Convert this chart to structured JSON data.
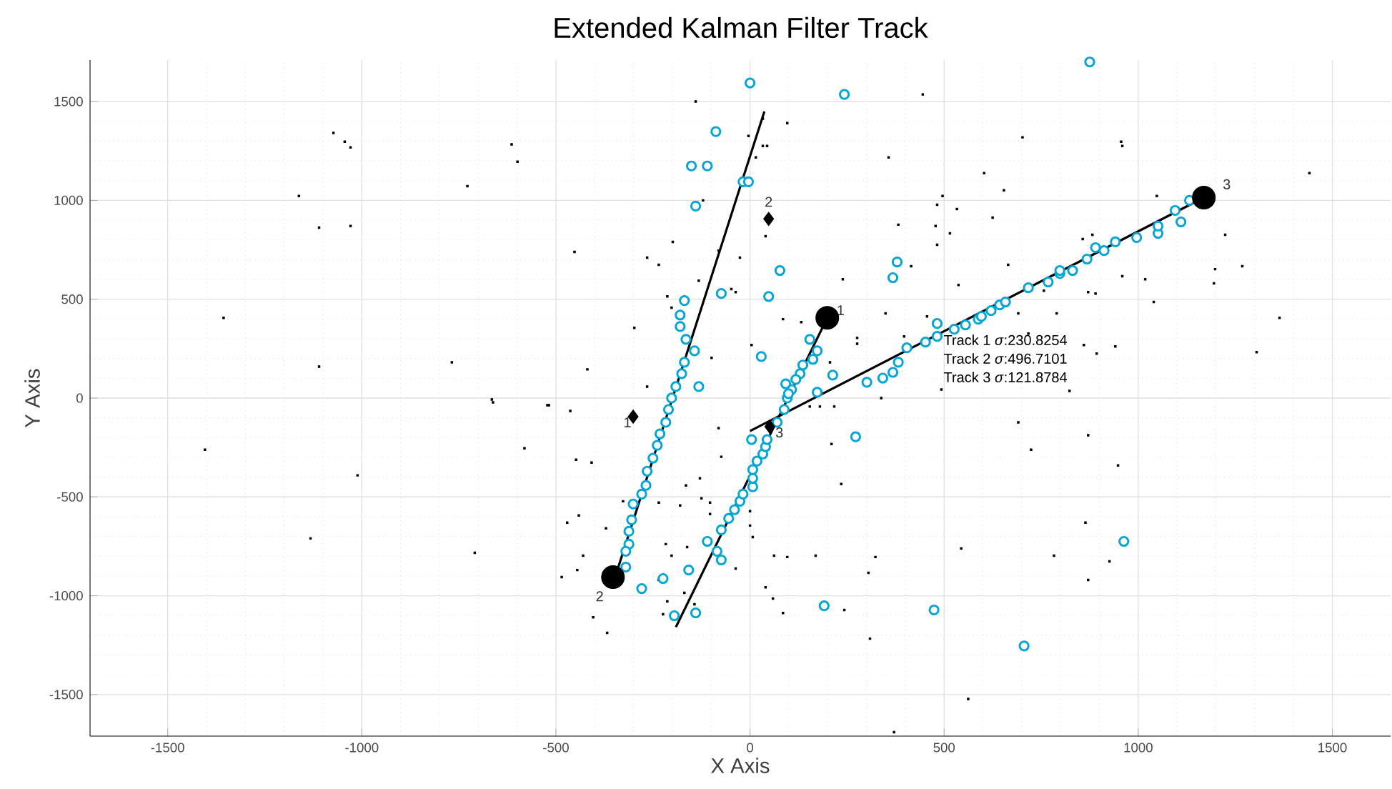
{
  "chart_data": {
    "type": "scatter",
    "title": "Extended Kalman Filter Track",
    "xlabel": "X Axis",
    "ylabel": "Y Axis",
    "xlim": [
      -1700,
      1650
    ],
    "ylim": [
      -1710,
      1710
    ],
    "xticks": [
      -1500,
      -1000,
      -500,
      0,
      500,
      1000,
      1500
    ],
    "yticks": [
      -1500,
      -1000,
      -500,
      0,
      500,
      1000,
      1500
    ],
    "grid": true,
    "series": [
      {
        "marker": "square",
        "color": "#000000",
        "x": [
          -1073,
          -1044,
          -1029,
          -614,
          -599,
          -728,
          -1162,
          -1110,
          -1029,
          -1356,
          -1110,
          -768,
          -665,
          -662,
          -522,
          -581,
          -1404,
          -1011,
          -1132,
          -709,
          -140,
          33,
          96,
          33,
          44,
          -4,
          15,
          357,
          445,
          496,
          482,
          533,
          -121,
          382,
          478,
          515,
          482,
          40,
          -452,
          -265,
          -235,
          -199,
          -81,
          -26,
          239,
          415,
          537,
          -48,
          -37,
          -132,
          -213,
          -202,
          -298,
          -419,
          -265,
          85,
          132,
          349,
          456,
          276,
          276,
          397,
          493,
          338,
          4,
          -99,
          206,
          702,
          956,
          959,
          603,
          654,
          1441,
          1048,
          625,
          1224,
          857,
          882,
          665,
          959,
          1018,
          1198,
          1195,
          1268,
          871,
          890,
          1040,
          757,
          790,
          691,
          1364,
          860,
          941,
          893,
          1305,
          823,
          717,
          -518,
          -463,
          -448,
          -408,
          -471,
          -441,
          -430,
          -485,
          -445,
          -404,
          -368,
          -327,
          -371,
          -165,
          -129,
          -125,
          -103,
          -180,
          -235,
          -217,
          -202,
          -162,
          -235,
          -213,
          -224,
          -169,
          -143,
          -74,
          -81,
          -103,
          -37,
          0,
          7,
          0,
          40,
          59,
          85,
          62,
          96,
          169,
          235,
          210,
          323,
          305,
          309,
          243,
          544,
          562,
          371,
          154,
          180,
          217,
          691,
          871,
          724,
          948,
          864,
          783,
          926,
          871
        ],
        "values": [
          1341,
          1297,
          1268,
          1283,
          1196,
          1072,
          1022,
          862,
          870,
          406,
          159,
          181,
          -7,
          -22,
          -36,
          -254,
          -261,
          -391,
          -710,
          -783,
          1500,
          1413,
          1391,
          1275,
          1275,
          1326,
          1217,
          1217,
          1536,
          1022,
          978,
          956,
          1000,
          877,
          870,
          833,
          775,
          819,
          739,
          710,
          674,
          790,
          746,
          710,
          601,
          667,
          572,
          551,
          536,
          594,
          514,
          457,
          355,
          145,
          58,
          399,
          384,
          428,
          413,
          304,
          275,
          312,
          43,
          0,
          268,
          203,
          181,
          1319,
          1297,
          1275,
          1138,
          1051,
          1138,
          1022,
          913,
          826,
          804,
          826,
          674,
          616,
          601,
          652,
          580,
          667,
          536,
          529,
          486,
          543,
          428,
          428,
          406,
          268,
          261,
          225,
          232,
          36,
          326,
          -36,
          -65,
          -312,
          -326,
          -630,
          -594,
          -797,
          -906,
          -870,
          -1109,
          -1188,
          -522,
          -659,
          -442,
          -406,
          -507,
          -529,
          -543,
          -529,
          -739,
          -797,
          -754,
          -920,
          -1029,
          -1094,
          -985,
          -1043,
          -297,
          -152,
          -587,
          -862,
          -572,
          -703,
          -645,
          -957,
          -1014,
          -1087,
          -797,
          -804,
          -797,
          -435,
          -232,
          -804,
          -884,
          -1217,
          -1072,
          -761,
          -1522,
          -1690,
          -43,
          -43,
          -43,
          -123,
          -188,
          -261,
          -341,
          -630,
          -797,
          -826,
          -920
        ]
      },
      {
        "marker": "circle",
        "color": "#00a6d6",
        "x": [
          0,
          243,
          -88,
          -151,
          -110,
          -18,
          -4,
          -140,
          77,
          48,
          -74,
          -169,
          -180,
          -180,
          -165,
          -143,
          -169,
          -176,
          -191,
          -132,
          -202,
          -210,
          -217,
          -232,
          -239,
          -250,
          -265,
          -268,
          -279,
          -301,
          -305,
          -312,
          -312,
          -320,
          -320,
          -279,
          -224,
          -158,
          -195,
          -140,
          -110,
          -85,
          -74,
          -74,
          -55,
          -40,
          -26,
          -18,
          7,
          7,
          7,
          18,
          33,
          40,
          44,
          4,
          70,
          88,
          96,
          107,
          173,
          272,
          191,
          474,
          963,
          706,
          29,
          154,
          173,
          162,
          136,
          129,
          118,
          92,
          99,
          213,
          301,
          342,
          368,
          382,
          404,
          452,
          482,
          482,
          526,
          368,
          379,
          555,
          588,
          596,
          621,
          643,
          658,
          717,
          768,
          798,
          798,
          831,
          868,
          890,
          912,
          941,
          996,
          1051,
          1051,
          1110,
          1095,
          1132,
          875
        ],
        "values": [
          1594,
          1536,
          1348,
          1174,
          1174,
          1094,
          1094,
          971,
          645,
          514,
          529,
          493,
          420,
          362,
          297,
          239,
          181,
          123,
          58,
          58,
          0,
          -58,
          -123,
          -181,
          -239,
          -304,
          -370,
          -442,
          -486,
          -536,
          -616,
          -674,
          -739,
          -775,
          -855,
          -964,
          -913,
          -870,
          -1101,
          -1087,
          -725,
          -775,
          -819,
          -667,
          -609,
          -565,
          -522,
          -486,
          -449,
          -406,
          -362,
          -319,
          -283,
          -246,
          -210,
          -210,
          -123,
          -58,
          0,
          43,
          29,
          -196,
          -1051,
          -1072,
          -725,
          -1254,
          210,
          297,
          239,
          196,
          167,
          123,
          94,
          72,
          22,
          116,
          80,
          101,
          130,
          181,
          254,
          283,
          312,
          377,
          348,
          609,
          688,
          370,
          399,
          413,
          442,
          471,
          486,
          558,
          587,
          630,
          645,
          645,
          703,
          761,
          746,
          790,
          812,
          833,
          870,
          891,
          949,
          1000,
          1700
        ]
      },
      {
        "type": "line",
        "marker": "none",
        "color": "#000000",
        "x": [
          -340,
          37
        ],
        "values": [
          -860,
          1450
        ]
      },
      {
        "type": "line",
        "marker": "none",
        "color": "#000000",
        "x": [
          -191,
          199
        ],
        "values": [
          -1159,
          406
        ]
      },
      {
        "type": "line",
        "marker": "none",
        "color": "#000000",
        "x": [
          0,
          1169
        ],
        "values": [
          -167,
          1014
        ]
      },
      {
        "marker": "diamond",
        "color": "#000000",
        "x": [
          -301,
          48,
          51
        ],
        "values": [
          -94,
          906,
          -145
        ]
      },
      {
        "marker": "circle",
        "color": "#000000",
        "x": [
          199,
          -353,
          1169
        ],
        "values": [
          406,
          -906,
          1014
        ]
      }
    ],
    "annotations": [
      {
        "text": "1",
        "x": 199,
        "y": 406
      },
      {
        "text": "2",
        "x": -353,
        "y": -906
      },
      {
        "text": "3",
        "x": 1169,
        "y": 1014
      },
      {
        "text": "2",
        "x": 48,
        "y": 906
      },
      {
        "text": "1",
        "x": -301,
        "y": -94
      },
      {
        "text": "3",
        "x": 51,
        "y": -145
      },
      "Track 1 *σ*:230.8254",
      "Track 2 *σ*:496.7101",
      "Track 3 *σ*:121.8784"
    ]
  }
}
